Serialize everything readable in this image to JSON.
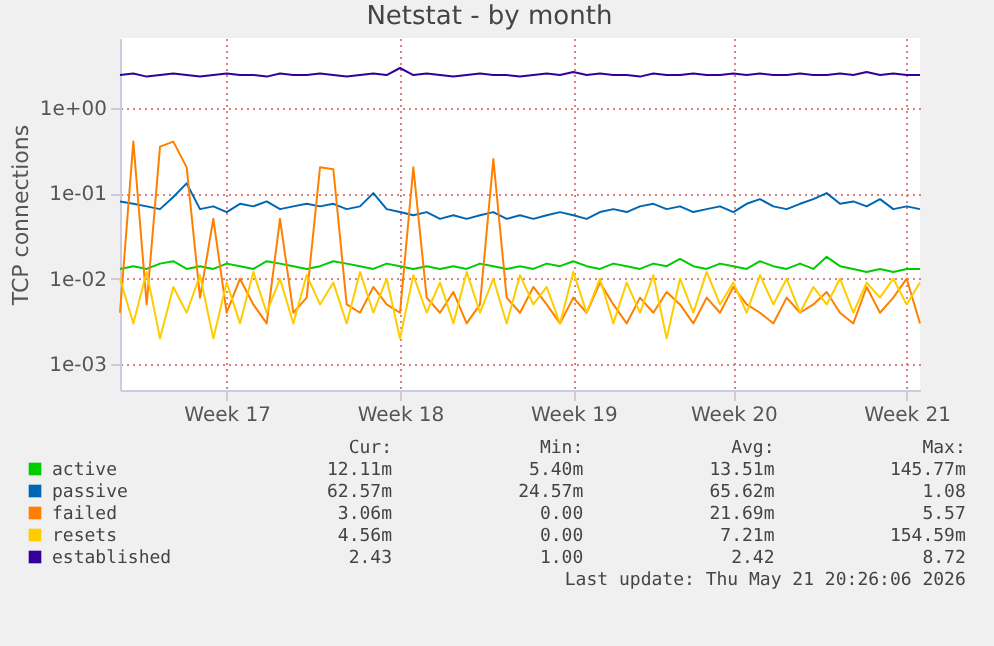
{
  "chart_data": {
    "type": "line",
    "title": "Netstat - by month",
    "ylabel": "TCP connections",
    "categories": [
      null,
      null,
      null,
      null,
      null,
      null,
      null,
      null,
      "Week 17",
      null,
      null,
      null,
      null,
      null,
      null,
      null,
      null,
      null,
      null,
      null,
      null,
      "Week 18",
      null,
      null,
      null,
      null,
      null,
      null,
      null,
      null,
      null,
      null,
      null,
      null,
      "Week 19",
      null,
      null,
      null,
      null,
      null,
      null,
      null,
      null,
      null,
      null,
      null,
      "Week 20",
      null,
      null,
      null,
      null,
      null,
      null,
      null,
      null,
      null,
      null,
      null,
      null,
      "Week 21",
      null
    ],
    "log": "y",
    "ylim": [
      0.0005,
      6.5
    ],
    "yticks": [
      {
        "value": 0.001,
        "label": "1e-03"
      },
      {
        "value": 0.01,
        "label": "1e-02"
      },
      {
        "value": 0.1,
        "label": "1e-01"
      },
      {
        "value": 1,
        "label": "1e+00"
      }
    ],
    "grid": true,
    "legend": "bottom left",
    "line_style": "solid",
    "marker": "none",
    "series": [
      {
        "name": "active",
        "color": "#00cc00",
        "values": [
          0.013,
          0.014,
          0.013,
          0.015,
          0.016,
          0.013,
          0.014,
          0.013,
          0.015,
          0.014,
          0.013,
          0.016,
          0.015,
          0.014,
          0.013,
          0.014,
          0.016,
          0.015,
          0.014,
          0.013,
          0.015,
          0.014,
          0.013,
          0.014,
          0.013,
          0.014,
          0.013,
          0.015,
          0.014,
          0.013,
          0.014,
          0.013,
          0.015,
          0.014,
          0.016,
          0.014,
          0.013,
          0.015,
          0.014,
          0.013,
          0.015,
          0.014,
          0.017,
          0.014,
          0.013,
          0.015,
          0.014,
          0.013,
          0.016,
          0.014,
          0.013,
          0.015,
          0.013,
          0.018,
          0.014,
          0.013,
          0.012,
          0.013,
          0.012,
          0.013,
          0.013
        ]
      },
      {
        "name": "passive",
        "color": "#0066b3",
        "values": [
          0.08,
          0.075,
          0.07,
          0.065,
          0.09,
          0.13,
          0.065,
          0.07,
          0.06,
          0.075,
          0.07,
          0.08,
          0.065,
          0.07,
          0.075,
          0.07,
          0.075,
          0.065,
          0.07,
          0.1,
          0.065,
          0.06,
          0.055,
          0.06,
          0.05,
          0.055,
          0.05,
          0.055,
          0.06,
          0.05,
          0.055,
          0.05,
          0.055,
          0.06,
          0.055,
          0.05,
          0.06,
          0.065,
          0.06,
          0.07,
          0.075,
          0.065,
          0.07,
          0.06,
          0.065,
          0.07,
          0.06,
          0.075,
          0.085,
          0.07,
          0.065,
          0.075,
          0.085,
          0.1,
          0.075,
          0.08,
          0.07,
          0.085,
          0.065,
          0.07,
          0.065
        ]
      },
      {
        "name": "failed",
        "color": "#ff8000",
        "values": [
          0.004,
          0.4,
          0.005,
          0.35,
          0.4,
          0.2,
          0.006,
          0.05,
          0.004,
          0.01,
          0.005,
          0.003,
          0.05,
          0.004,
          0.006,
          0.2,
          0.19,
          0.005,
          0.004,
          0.008,
          0.005,
          0.004,
          0.2,
          0.006,
          0.004,
          0.007,
          0.003,
          0.005,
          0.25,
          0.006,
          0.004,
          0.008,
          0.005,
          0.003,
          0.006,
          0.004,
          0.009,
          0.005,
          0.003,
          0.006,
          0.004,
          0.007,
          0.005,
          0.003,
          0.006,
          0.004,
          0.008,
          0.005,
          0.004,
          0.003,
          0.006,
          0.004,
          0.005,
          0.007,
          0.004,
          0.003,
          0.008,
          0.004,
          0.006,
          0.01,
          0.003
        ]
      },
      {
        "name": "resets",
        "color": "#ffcc00",
        "values": [
          0.01,
          0.003,
          0.012,
          0.002,
          0.008,
          0.004,
          0.011,
          0.002,
          0.009,
          0.003,
          0.012,
          0.004,
          0.01,
          0.003,
          0.011,
          0.005,
          0.009,
          0.003,
          0.012,
          0.004,
          0.01,
          0.002,
          0.011,
          0.004,
          0.009,
          0.003,
          0.012,
          0.004,
          0.01,
          0.003,
          0.011,
          0.005,
          0.008,
          0.003,
          0.012,
          0.004,
          0.01,
          0.003,
          0.009,
          0.004,
          0.011,
          0.002,
          0.01,
          0.004,
          0.012,
          0.005,
          0.009,
          0.004,
          0.011,
          0.005,
          0.01,
          0.004,
          0.008,
          0.005,
          0.01,
          0.004,
          0.009,
          0.006,
          0.01,
          0.005,
          0.009
        ]
      },
      {
        "name": "established",
        "color": "#330099",
        "values": [
          2.4,
          2.5,
          2.3,
          2.4,
          2.5,
          2.4,
          2.3,
          2.4,
          2.5,
          2.4,
          2.4,
          2.3,
          2.5,
          2.4,
          2.4,
          2.5,
          2.4,
          2.3,
          2.4,
          2.5,
          2.4,
          2.9,
          2.4,
          2.5,
          2.4,
          2.3,
          2.4,
          2.5,
          2.4,
          2.4,
          2.3,
          2.4,
          2.5,
          2.4,
          2.6,
          2.4,
          2.5,
          2.4,
          2.4,
          2.3,
          2.5,
          2.4,
          2.4,
          2.5,
          2.4,
          2.4,
          2.5,
          2.4,
          2.5,
          2.4,
          2.4,
          2.5,
          2.4,
          2.4,
          2.5,
          2.4,
          2.6,
          2.4,
          2.5,
          2.4,
          2.4
        ]
      }
    ],
    "annotations": [
      "Cur:",
      "Min:",
      "Avg:",
      "Max:",
      "12.11m",
      "5.40m",
      "13.51m",
      "145.77m",
      "62.57m",
      "24.57m",
      "65.62m",
      "1.08",
      "3.06m",
      "0.00",
      "21.69m",
      "5.57",
      "4.56m",
      "0.00",
      "7.21m",
      "154.59m",
      "2.43",
      "1.00",
      "2.42",
      "8.72",
      "Last update: Thu May 21 20:26:06 2026"
    ]
  }
}
